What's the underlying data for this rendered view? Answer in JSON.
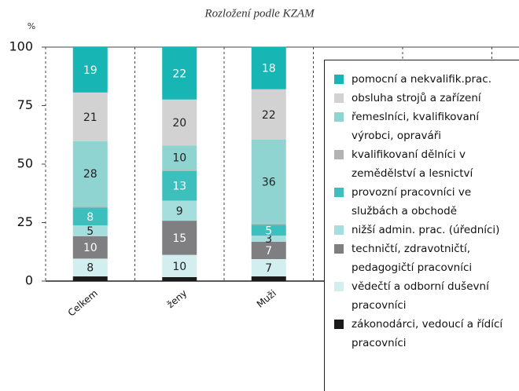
{
  "chart_data": {
    "type": "stacked_bar",
    "title": "Rozložení podle KZAM",
    "y_unit": "%",
    "categories": [
      "Celkem",
      "ženy",
      "Muži"
    ],
    "ylim": [
      0,
      100
    ],
    "yticks": [
      0,
      25,
      50,
      75,
      100
    ],
    "series": [
      {
        "name": "zákonodárci, vedoucí a řídící pracovníci",
        "color": "#1a1a1a",
        "values": [
          2,
          1.7,
          2
        ]
      },
      {
        "name": "vědečtí a odborní duševní pracovníci",
        "color": "#d3eeee",
        "values": [
          7.6,
          9.5,
          7.4
        ],
        "value_labels": [
          "8",
          "10",
          "7"
        ]
      },
      {
        "name": "techničtí, zdravotničtí, pedagogičtí pracovníci",
        "color": "#7f7f81",
        "values": [
          9.6,
          14.6,
          7.4
        ],
        "value_labels": [
          "10",
          "15",
          "7"
        ]
      },
      {
        "name": "nižší admin. prac. (úředníci)",
        "color": "#a6dedd",
        "values": [
          4.6,
          8.6,
          2.6
        ],
        "value_labels": [
          "5",
          "9",
          "3"
        ]
      },
      {
        "name": "provozní pracovníci ve službách a obchodě",
        "color": "#3dbfbd",
        "values": [
          7.6,
          12.6,
          4.6
        ],
        "value_labels": [
          "8",
          "13",
          "5"
        ]
      },
      {
        "name": "kvalifikovaní dělníci v zemědělství a lesnictví",
        "color": "#b3b3b3",
        "values": [
          0.6,
          0.6,
          0.6
        ]
      },
      {
        "name": "řemeslníci, kvalifikovaní výrobci, opraváři",
        "color": "#8fd4d1",
        "values": [
          27.8,
          10.4,
          35.8
        ],
        "value_labels": [
          "28",
          "10",
          "36"
        ]
      },
      {
        "name": "obsluha strojů a zařízení",
        "color": "#d2d2d3",
        "values": [
          20.8,
          19.6,
          21.6
        ],
        "value_labels": [
          "21",
          "20",
          "22"
        ]
      },
      {
        "name": "pomocní a nekvalifik.prac.",
        "color": "#17b6b4",
        "values": [
          19.4,
          22.4,
          18.2
        ],
        "value_labels": [
          "19",
          "22",
          "18"
        ]
      }
    ]
  }
}
